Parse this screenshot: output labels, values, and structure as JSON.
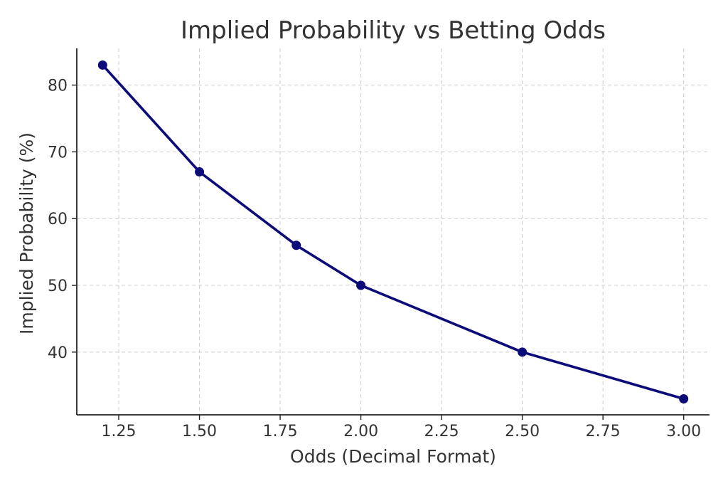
{
  "chart_data": {
    "type": "line",
    "title": "Implied Probability vs Betting Odds",
    "xlabel": "Odds (Decimal Format)",
    "ylabel": "Implied Probability (%)",
    "x": [
      1.2,
      1.5,
      1.8,
      2.0,
      2.5,
      3.0
    ],
    "series": [
      {
        "values": [
          83,
          67,
          56,
          50,
          40,
          33
        ],
        "color": "#0b0b7a"
      }
    ],
    "xlim": [
      1.12,
      3.08
    ],
    "ylim": [
      30.6,
      85.5
    ],
    "xticks": [
      1.25,
      1.5,
      1.75,
      2.0,
      2.25,
      2.5,
      2.75,
      3.0
    ],
    "xtick_labels": [
      "1.25",
      "1.50",
      "1.75",
      "2.00",
      "2.25",
      "2.50",
      "2.75",
      "3.00"
    ],
    "yticks": [
      40,
      50,
      60,
      70,
      80
    ],
    "ytick_labels": [
      "40",
      "50",
      "60",
      "70",
      "80"
    ],
    "grid": true,
    "grid_style": "dashed",
    "markers": "circle"
  }
}
